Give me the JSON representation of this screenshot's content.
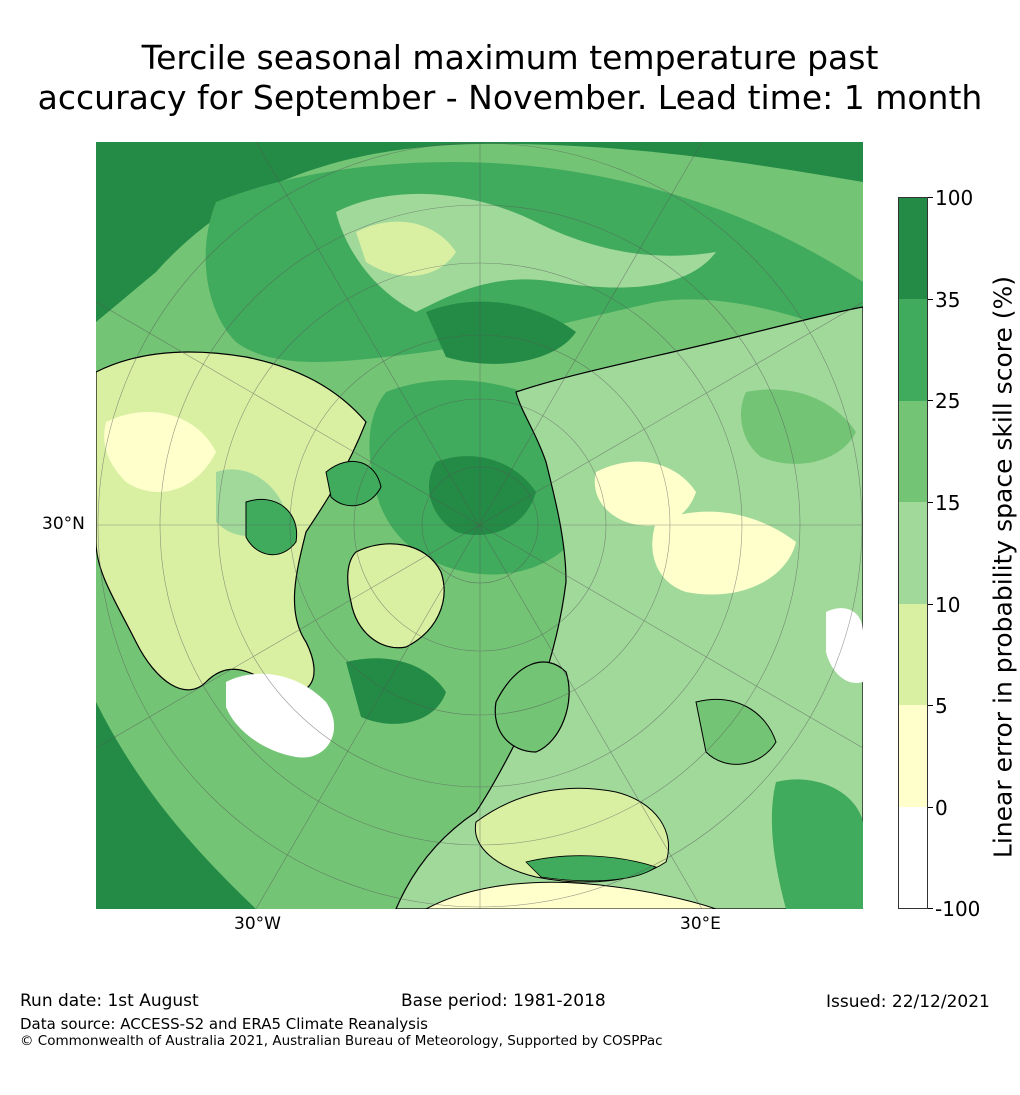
{
  "title_line1": "Tercile seasonal maximum temperature past",
  "title_line2": "accuracy for September - November. Lead time: 1 month",
  "map": {
    "latitude_labels": [
      "30°N"
    ],
    "longitude_labels": [
      "30°W",
      "30°E"
    ],
    "colors": {
      "ocean_dark": "#238b45",
      "mid_green": "#41ab5d",
      "light_green": "#74c476",
      "pale_green": "#a1d99b",
      "yellow_green": "#d9f0a3",
      "cream": "#ffffcc",
      "white": "#ffffff",
      "coast": "#000000"
    }
  },
  "colorbar": {
    "label": "Linear error in probability space skill score (%)",
    "ticks": [
      "100",
      "35",
      "25",
      "15",
      "10",
      "5",
      "0",
      "-100"
    ],
    "bands": [
      {
        "range": "35 to 100",
        "color": "#238b45"
      },
      {
        "range": "25 to 35",
        "color": "#41ab5d"
      },
      {
        "range": "15 to 25",
        "color": "#74c476"
      },
      {
        "range": "10 to 15",
        "color": "#a1d99b"
      },
      {
        "range": "5 to 10",
        "color": "#d9f0a3"
      },
      {
        "range": "0 to 5",
        "color": "#ffffcc"
      },
      {
        "range": "-100 to 0",
        "color": "#ffffff"
      }
    ]
  },
  "footer": {
    "run_date": "Run date: 1st August",
    "base_period": "Base period: 1981-2018",
    "issued": "Issued: 22/12/2021",
    "data_source": "Data source: ACCESS-S2 and ERA5 Climate Reanalysis",
    "copyright": "© Commonwealth of Australia 2021, Australian Bureau of Meteorology, Supported by COSPPac"
  }
}
